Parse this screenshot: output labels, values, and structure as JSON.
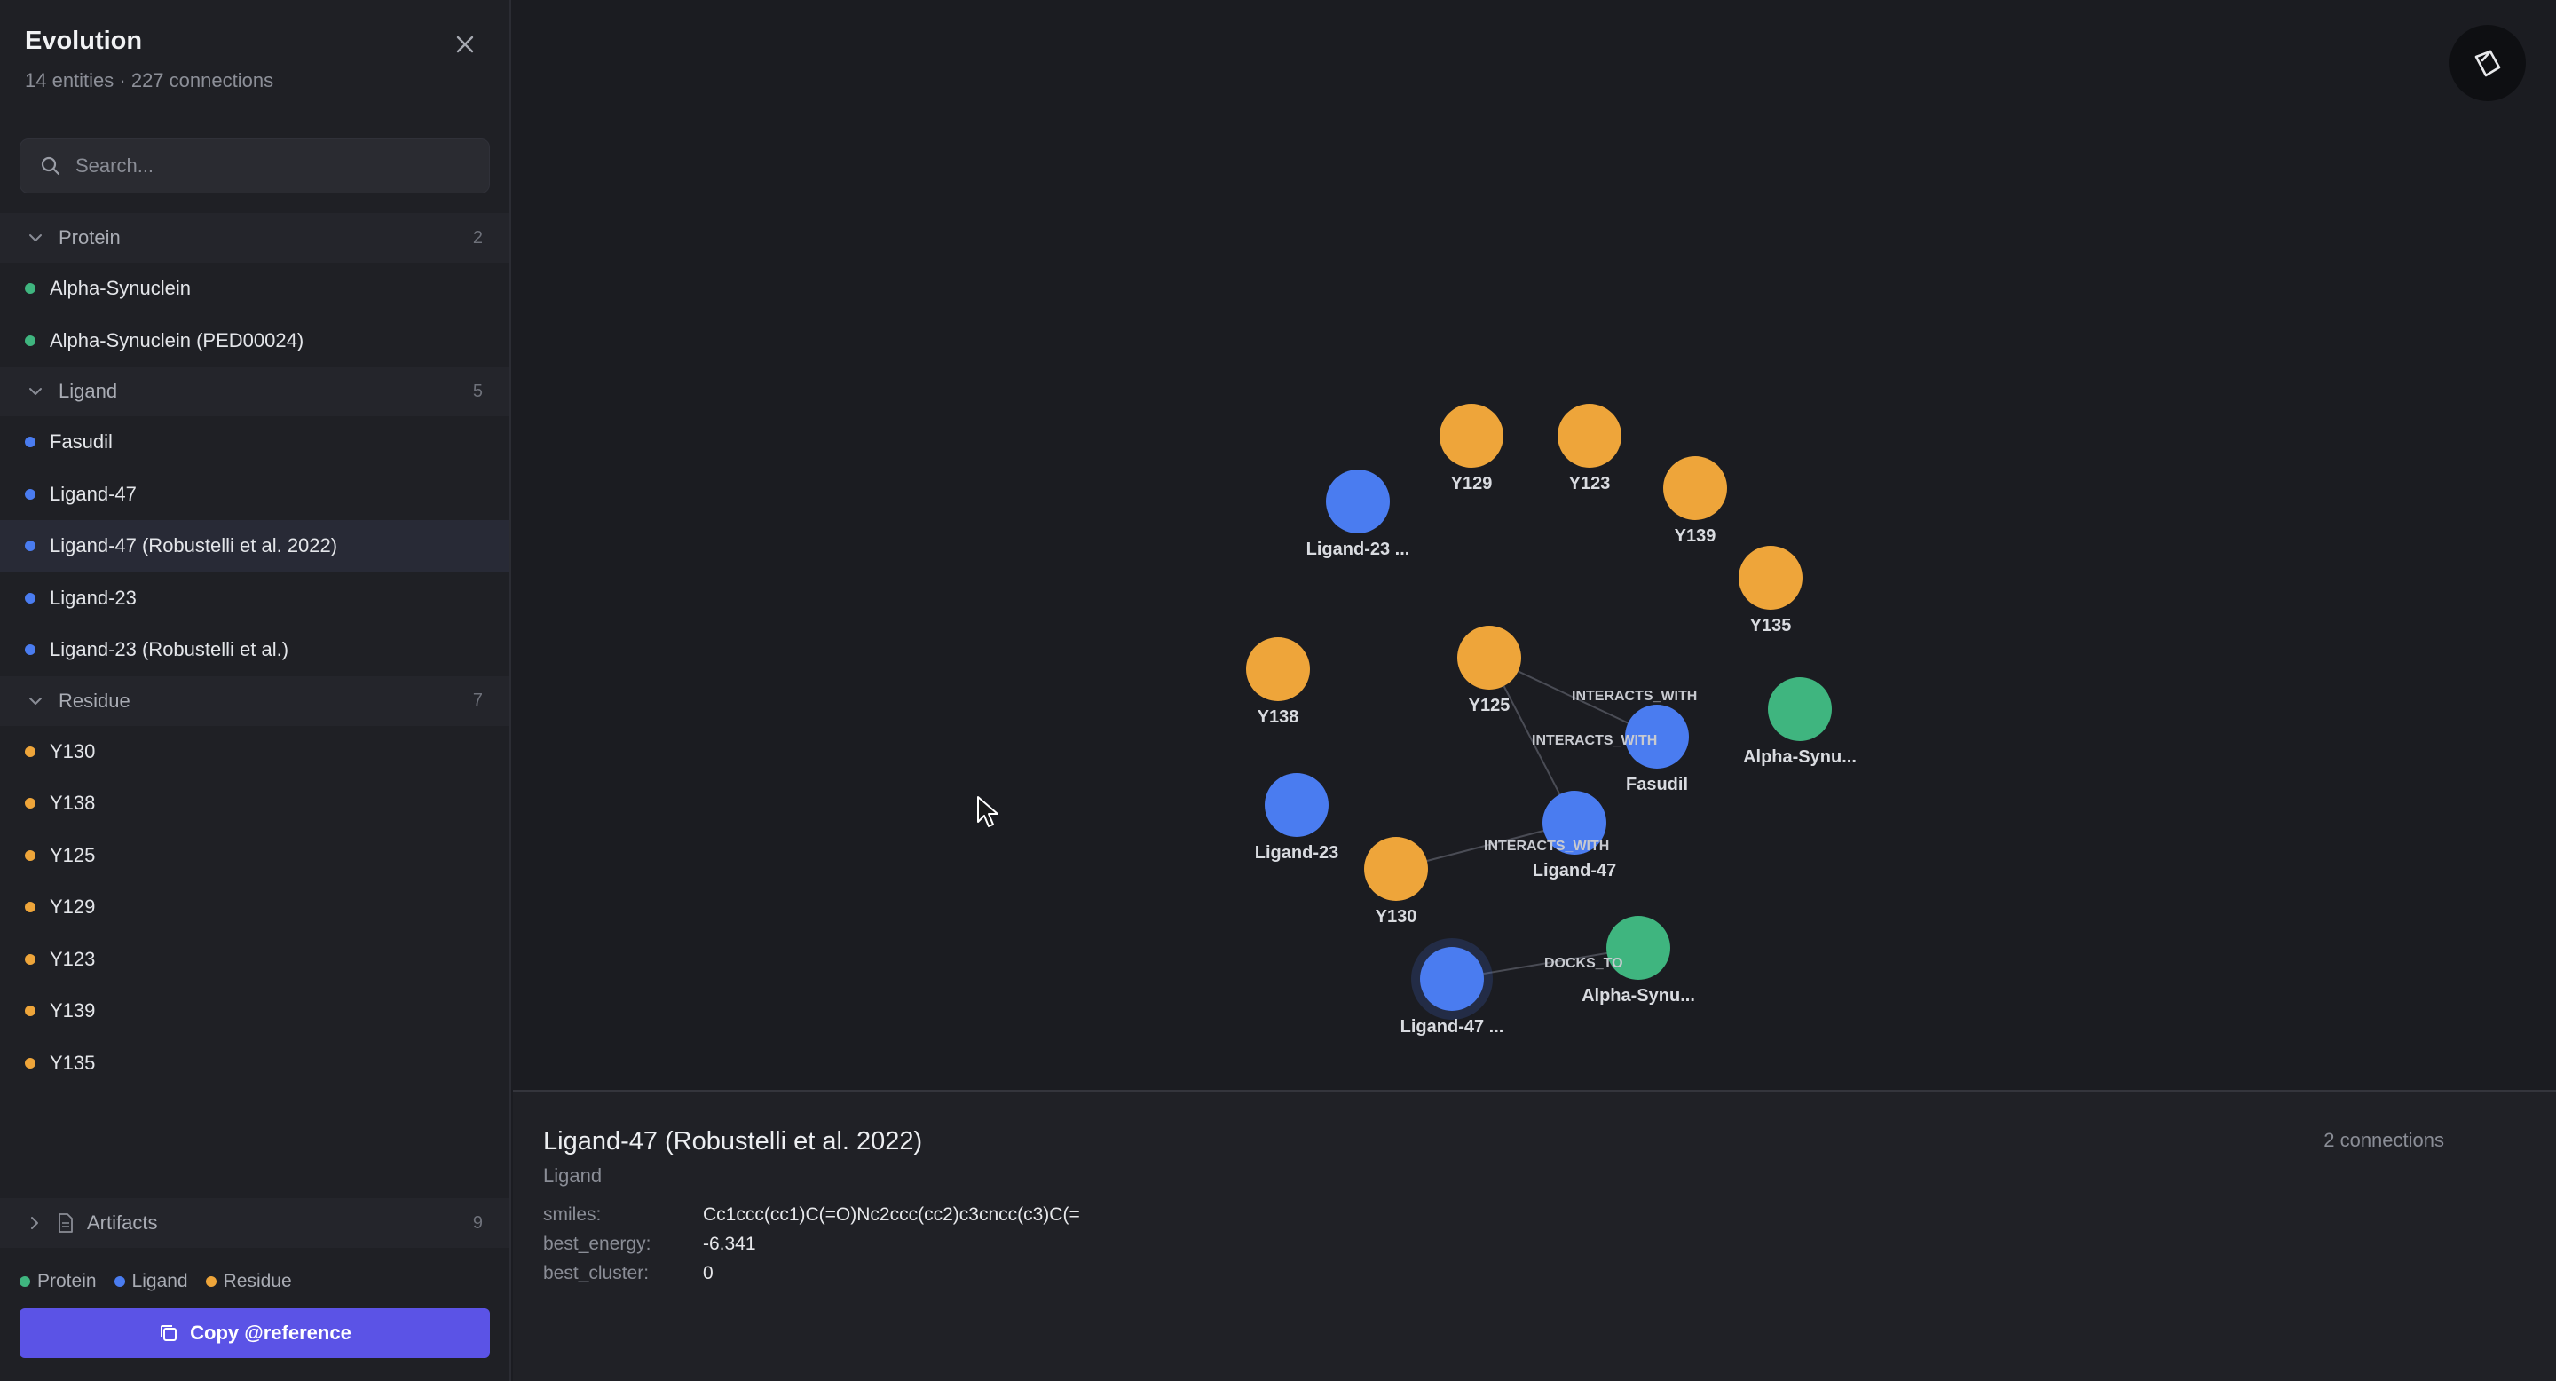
{
  "sidebar": {
    "title": "Evolution",
    "subtitle": "14 entities · 227 connections",
    "search_placeholder": "Search...",
    "groups": [
      {
        "label": "Protein",
        "count": "2",
        "color": "#3fb57f",
        "items": [
          {
            "label": "Alpha-Synuclein"
          },
          {
            "label": "Alpha-Synuclein (PED00024)"
          }
        ]
      },
      {
        "label": "Ligand",
        "count": "5",
        "color": "#4a7cf0",
        "items": [
          {
            "label": "Fasudil"
          },
          {
            "label": "Ligand-47"
          },
          {
            "label": "Ligand-47 (Robustelli et al. 2022)",
            "selected": true
          },
          {
            "label": "Ligand-23"
          },
          {
            "label": "Ligand-23 (Robustelli et al.)"
          }
        ]
      },
      {
        "label": "Residue",
        "count": "7",
        "color": "#eea53a",
        "items": [
          {
            "label": "Y130"
          },
          {
            "label": "Y138"
          },
          {
            "label": "Y125"
          },
          {
            "label": "Y129"
          },
          {
            "label": "Y123"
          },
          {
            "label": "Y139"
          },
          {
            "label": "Y135"
          }
        ]
      }
    ],
    "artifacts": {
      "label": "Artifacts",
      "count": "9"
    },
    "legend": [
      {
        "label": "Protein",
        "color": "#3fb57f"
      },
      {
        "label": "Ligand",
        "color": "#4a7cf0"
      },
      {
        "label": "Residue",
        "color": "#eea53a"
      }
    ],
    "copy_button": "Copy @reference"
  },
  "graph": {
    "colors": {
      "protein": "#3fb57f",
      "ligand": "#4a7cf0",
      "residue": "#eea53a"
    },
    "nodes": [
      {
        "id": "y129",
        "label": "Y129",
        "type": "residue"
      },
      {
        "id": "y123",
        "label": "Y123",
        "type": "residue"
      },
      {
        "id": "lig23r",
        "label": "Ligand-23 ...",
        "type": "ligand"
      },
      {
        "id": "y139",
        "label": "Y139",
        "type": "residue"
      },
      {
        "id": "y135",
        "label": "Y135",
        "type": "residue"
      },
      {
        "id": "y138",
        "label": "Y138",
        "type": "residue"
      },
      {
        "id": "y125",
        "label": "Y125",
        "type": "residue"
      },
      {
        "id": "alpha1",
        "label": "Alpha-Synu...",
        "type": "protein"
      },
      {
        "id": "fasudil",
        "label": "Fasudil",
        "type": "ligand"
      },
      {
        "id": "lig23",
        "label": "Ligand-23",
        "type": "ligand"
      },
      {
        "id": "lig47",
        "label": "Ligand-47",
        "type": "ligand"
      },
      {
        "id": "y130",
        "label": "Y130",
        "type": "residue"
      },
      {
        "id": "alpha2",
        "label": "Alpha-Synu...",
        "type": "protein"
      },
      {
        "id": "lig47r",
        "label": "Ligand-47 ...",
        "type": "ligand"
      }
    ],
    "edges": [
      {
        "from": "y125",
        "to": "fasudil",
        "label": "INTERACTS_WITH"
      },
      {
        "from": "y125",
        "to": "lig47",
        "label": "INTERACTS_WITH"
      },
      {
        "from": "y130",
        "to": "lig47",
        "label": "INTERACTS_WITH"
      },
      {
        "from": "lig47r",
        "to": "alpha2",
        "label": "DOCKS_TO"
      }
    ]
  },
  "detail": {
    "title": "Ligand-47 (Robustelli et al. 2022)",
    "type": "Ligand",
    "connections": "2 connections",
    "props": [
      {
        "key": "smiles:",
        "value": "Cc1ccc(cc1)C(=O)Nc2ccc(cc2)c3cncc(c3)C(="
      },
      {
        "key": "best_energy:",
        "value": "-6.341"
      },
      {
        "key": "best_cluster:",
        "value": "0"
      }
    ]
  }
}
